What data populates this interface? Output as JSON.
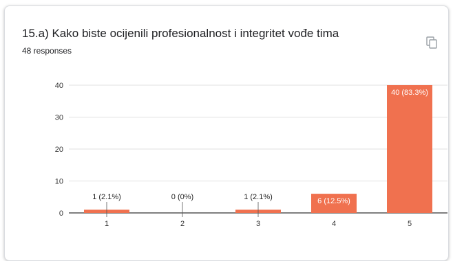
{
  "card": {
    "question_title": "15.a) Kako biste ocijenili profesionalnost i integritet vođe tima",
    "responses_label": "48 responses",
    "copy_icon": "copy-icon"
  },
  "colors": {
    "bar": "#f0714f",
    "grid": "#e0e0e0",
    "axis": "#333333"
  },
  "chart_data": {
    "type": "bar",
    "title": "15.a) Kako biste ocijenili profesionalnost i integritet vođe tima",
    "xlabel": "",
    "ylabel": "",
    "categories": [
      "1",
      "2",
      "3",
      "4",
      "5"
    ],
    "values": [
      1,
      0,
      1,
      6,
      40
    ],
    "data_labels": [
      "1 (2.1%)",
      "0 (0%)",
      "1 (2.1%)",
      "6 (12.5%)",
      "40 (83.3%)"
    ],
    "ylim": [
      0,
      40
    ],
    "yticks": [
      0,
      10,
      20,
      30,
      40
    ],
    "grid": true,
    "legend": "none"
  }
}
